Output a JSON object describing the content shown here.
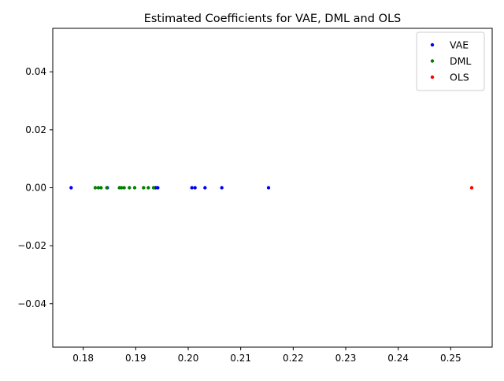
{
  "chart_data": {
    "type": "scatter",
    "title": "Estimated Coefficients for VAE, DML and OLS",
    "xlabel": "",
    "ylabel": "",
    "xlim": [
      0.1742,
      0.2579
    ],
    "ylim": [
      -0.055,
      0.055
    ],
    "x_ticks": [
      0.18,
      0.19,
      0.2,
      0.21,
      0.22,
      0.23,
      0.24,
      0.25
    ],
    "x_tick_labels": [
      "0.18",
      "0.19",
      "0.20",
      "0.21",
      "0.22",
      "0.23",
      "0.24",
      "0.25"
    ],
    "y_ticks": [
      -0.04,
      -0.02,
      0.0,
      0.02,
      0.04
    ],
    "y_tick_labels": [
      "−0.04",
      "−0.02",
      "0.00",
      "0.02",
      "0.04"
    ],
    "grid": false,
    "legend_position": "top-right",
    "series": [
      {
        "name": "VAE",
        "color": "#0000ff",
        "x": [
          0.1777,
          0.1846,
          0.1938,
          0.1942,
          0.2007,
          0.2013,
          0.2032,
          0.2064,
          0.2153
        ],
        "y": [
          0,
          0,
          0,
          0,
          0,
          0,
          0,
          0,
          0
        ]
      },
      {
        "name": "DML",
        "color": "#008000",
        "x": [
          0.1823,
          0.1829,
          0.1834,
          0.1845,
          0.1869,
          0.1873,
          0.1878,
          0.1888,
          0.1898,
          0.1915,
          0.1924,
          0.1934
        ],
        "y": [
          0,
          0,
          0,
          0,
          0,
          0,
          0,
          0,
          0,
          0,
          0,
          0
        ]
      },
      {
        "name": "OLS",
        "color": "#ff0000",
        "x": [
          0.254
        ],
        "y": [
          0
        ]
      }
    ]
  }
}
